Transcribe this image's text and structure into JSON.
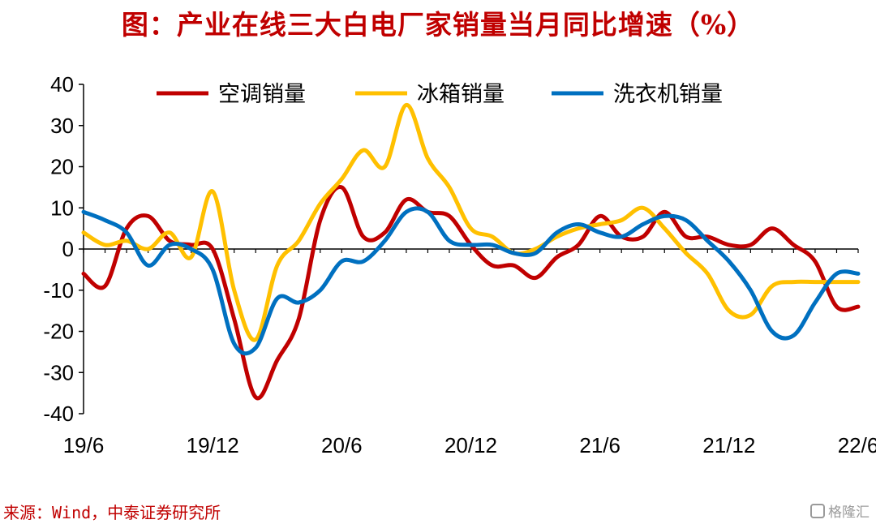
{
  "title": "图：产业在线三大白电厂家销量当月同比增速（%）",
  "source": "来源：Wind，中泰证券研究所",
  "watermark": "格隆汇",
  "chart_data": {
    "type": "line",
    "ylim": [
      -40,
      40
    ],
    "yticks": [
      40,
      30,
      20,
      10,
      0,
      -10,
      -20,
      -30,
      -40
    ],
    "x_tick_labels": [
      "19/6",
      "19/12",
      "20/6",
      "20/12",
      "21/6",
      "21/12",
      "22/6"
    ],
    "x": [
      "2019-06",
      "2019-07",
      "2019-08",
      "2019-09",
      "2019-10",
      "2019-11",
      "2019-12",
      "2020-01",
      "2020-02",
      "2020-03",
      "2020-04",
      "2020-05",
      "2020-06",
      "2020-07",
      "2020-08",
      "2020-09",
      "2020-10",
      "2020-11",
      "2020-12",
      "2021-01",
      "2021-02",
      "2021-03",
      "2021-04",
      "2021-05",
      "2021-06",
      "2021-07",
      "2021-08",
      "2021-09",
      "2021-10",
      "2021-11",
      "2021-12",
      "2022-01",
      "2022-02",
      "2022-03",
      "2022-04",
      "2022-05",
      "2022-06"
    ],
    "legend_position": "top",
    "series": [
      {
        "name": "空调销量",
        "color": "#c00000",
        "values": [
          -6,
          -9,
          5,
          8,
          2,
          1,
          0,
          -17,
          -36,
          -27,
          -17,
          7,
          15,
          3,
          4,
          12,
          9,
          8,
          1,
          -4,
          -4,
          -7,
          -2,
          1,
          8,
          3,
          3,
          9,
          3,
          3,
          1,
          1,
          5,
          1,
          -3,
          -14,
          -14
        ]
      },
      {
        "name": "冰箱销量",
        "color": "#ffc000",
        "values": [
          4,
          1,
          2,
          0,
          4,
          -2,
          14,
          -10,
          -22,
          -4,
          2,
          11,
          17,
          24,
          20,
          35,
          22,
          15,
          5,
          3,
          -1,
          0,
          3,
          5,
          6,
          7,
          10,
          5,
          -1,
          -6,
          -15,
          -16,
          -9,
          -8,
          -8,
          -8,
          -8
        ]
      },
      {
        "name": "洗衣机销量",
        "color": "#0070c0",
        "values": [
          9,
          7,
          4,
          -4,
          1,
          0,
          -5,
          -23,
          -24,
          -12,
          -13,
          -10,
          -3,
          -3,
          2,
          9,
          9,
          2,
          1,
          1,
          -1,
          -1,
          4,
          6,
          4,
          3,
          6,
          8,
          7,
          2,
          -3,
          -10,
          -20,
          -21,
          -13,
          -6,
          -6
        ]
      }
    ]
  }
}
